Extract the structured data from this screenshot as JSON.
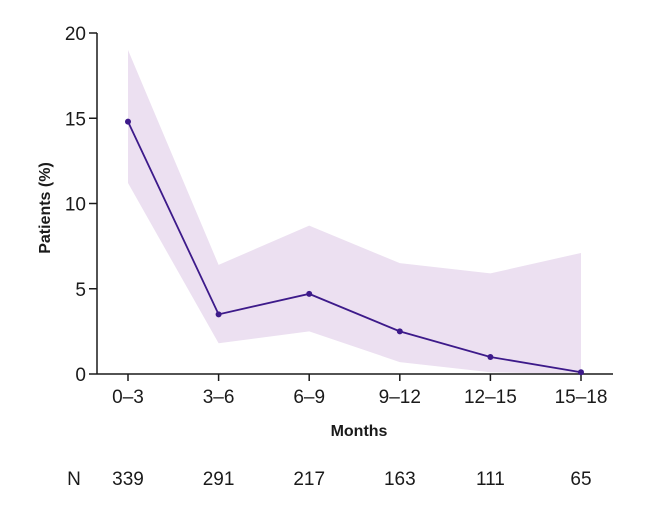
{
  "chart_data": {
    "type": "line",
    "title": "",
    "xlabel": "Months",
    "ylabel": "Patients (%)",
    "categories": [
      "0–3",
      "3–6",
      "6–9",
      "9–12",
      "12–15",
      "15–18"
    ],
    "yticks": [
      "0",
      "5",
      "10",
      "15",
      "20"
    ],
    "ylim": [
      0,
      20
    ],
    "grid": false,
    "series": [
      {
        "values": [
          14.8,
          3.5,
          4.7,
          2.5,
          1.0,
          0.1
        ],
        "lower": [
          11.2,
          1.8,
          2.5,
          0.7,
          0.1,
          0.0
        ],
        "upper": [
          19.0,
          6.4,
          8.7,
          6.5,
          5.9,
          7.1
        ]
      }
    ],
    "colors": {
      "line": "#3d1a8a",
      "band": "#ece0f1",
      "axis": "#1a1a1a"
    },
    "n_row": {
      "label": "N",
      "values": [
        "339",
        "291",
        "217",
        "163",
        "111",
        "65"
      ]
    }
  }
}
